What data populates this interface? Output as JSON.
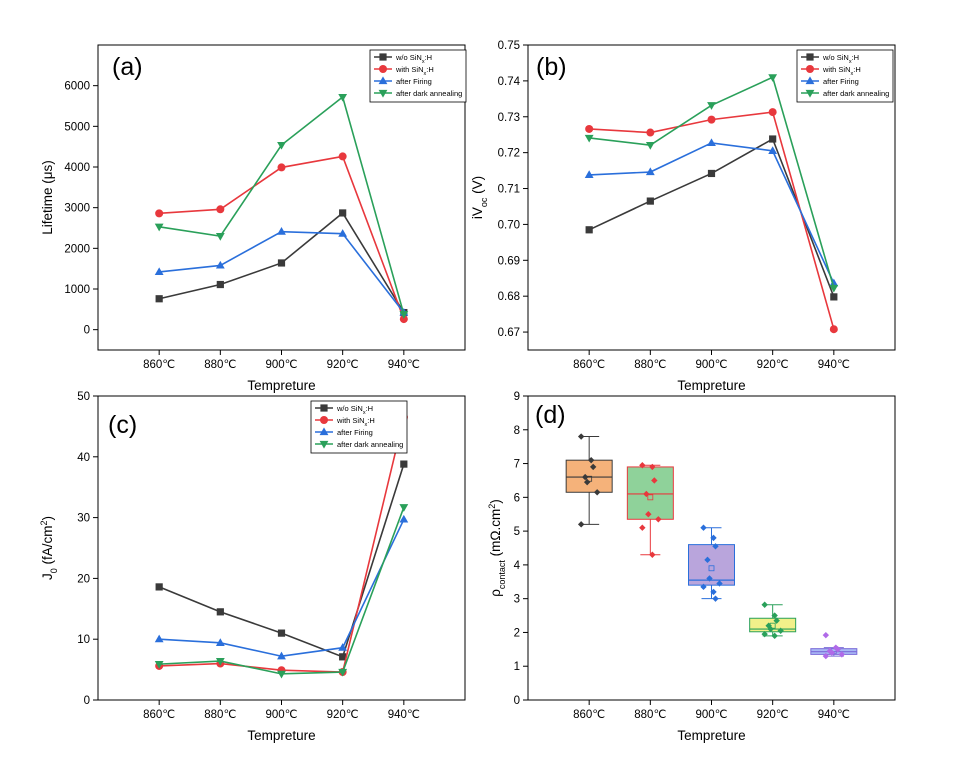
{
  "chart_data": [
    {
      "id": "a",
      "type": "line",
      "panel_label": "(a)",
      "categories": [
        "860℃",
        "880℃",
        "900℃",
        "920℃",
        "940℃"
      ],
      "xlabel": "Tempreture",
      "ylabel": "Lifetime (μs)",
      "ylim": [
        -500,
        7000
      ],
      "yticks": [
        0,
        1000,
        2000,
        3000,
        4000,
        5000,
        6000
      ],
      "ytick_labels": [
        "0",
        "1000",
        "2000",
        "3000",
        "4000",
        "5000",
        "6000"
      ],
      "legend_position": "top-right",
      "series": [
        {
          "name": "w/o SiNx:H",
          "label_main": "w/o SiN",
          "label_sub": "x",
          "label_tail": ":H",
          "color": "#3a3a3a",
          "marker": "square",
          "values": [
            760,
            1110,
            1640,
            2870,
            420
          ]
        },
        {
          "name": "with SiNx:H",
          "label_main": "with SiN",
          "label_sub": "x",
          "label_tail": ":H",
          "color": "#e8383d",
          "marker": "circle",
          "values": [
            2860,
            2960,
            3990,
            4260,
            260
          ]
        },
        {
          "name": "after Firing",
          "label_main": "after Firing",
          "label_sub": "",
          "label_tail": "",
          "color": "#2a6fdb",
          "marker": "triangle-up",
          "values": [
            1420,
            1580,
            2410,
            2360,
            420
          ]
        },
        {
          "name": "after dark annealing",
          "label_main": "after dark annealing",
          "label_sub": "",
          "label_tail": "",
          "color": "#2aa05a",
          "marker": "triangle-down",
          "values": [
            2530,
            2300,
            4540,
            5720,
            380
          ]
        }
      ]
    },
    {
      "id": "b",
      "type": "line",
      "panel_label": "(b)",
      "categories": [
        "860℃",
        "880℃",
        "900℃",
        "920℃",
        "940℃"
      ],
      "xlabel": "Tempreture",
      "ylabel_main": "iV",
      "ylabel_sub": "oc",
      "ylabel_tail": " (V)",
      "ylim": [
        0.665,
        0.75
      ],
      "yticks": [
        0.67,
        0.68,
        0.69,
        0.7,
        0.71,
        0.72,
        0.73,
        0.74,
        0.75
      ],
      "ytick_labels": [
        "0.67",
        "0.68",
        "0.69",
        "0.70",
        "0.71",
        "0.72",
        "0.73",
        "0.74",
        "0.75"
      ],
      "legend_position": "top-right",
      "series": [
        {
          "name": "w/o SiNx:H",
          "label_main": "w/o SiN",
          "label_sub": "x",
          "label_tail": ":H",
          "color": "#3a3a3a",
          "marker": "square",
          "values": [
            0.6985,
            0.7065,
            0.7142,
            0.7238,
            0.6798
          ]
        },
        {
          "name": "with SiNx:H",
          "label_main": "with SiN",
          "label_sub": "x",
          "label_tail": ":H",
          "color": "#e8383d",
          "marker": "circle",
          "values": [
            0.7266,
            0.7256,
            0.7292,
            0.7313,
            0.6708
          ]
        },
        {
          "name": "after Firing",
          "label_main": "after Firing",
          "label_sub": "",
          "label_tail": "",
          "color": "#2a6fdb",
          "marker": "triangle-up",
          "values": [
            0.7138,
            0.7146,
            0.7227,
            0.7205,
            0.6836
          ]
        },
        {
          "name": "after dark annealing",
          "label_main": "after dark annealing",
          "label_sub": "",
          "label_tail": "",
          "color": "#2aa05a",
          "marker": "triangle-down",
          "values": [
            0.7241,
            0.7221,
            0.7332,
            0.741,
            0.6823
          ]
        }
      ]
    },
    {
      "id": "c",
      "type": "line",
      "panel_label": "(c)",
      "categories": [
        "860℃",
        "880℃",
        "900℃",
        "920℃",
        "940℃"
      ],
      "xlabel": "Tempreture",
      "ylabel_main": "J",
      "ylabel_sub": "0",
      "ylabel_mid": " (fA/cm",
      "ylabel_sup": "2",
      "ylabel_tail": ")",
      "ylim": [
        0,
        50
      ],
      "yticks": [
        0,
        10,
        20,
        30,
        40,
        50
      ],
      "ytick_labels": [
        "0",
        "10",
        "20",
        "30",
        "40",
        "50"
      ],
      "legend_position": "top-right",
      "series": [
        {
          "name": "w/o SiNx:H",
          "label_main": "w/o SiN",
          "label_sub": "x",
          "label_tail": ":H",
          "color": "#3a3a3a",
          "marker": "square",
          "values": [
            18.6,
            14.5,
            11.0,
            7.1,
            38.8
          ]
        },
        {
          "name": "with SiNx:H",
          "label_main": "with SiN",
          "label_sub": "x",
          "label_tail": ":H",
          "color": "#e8383d",
          "marker": "circle",
          "values": [
            5.6,
            6.0,
            4.9,
            4.6,
            46.5
          ]
        },
        {
          "name": "after Firing",
          "label_main": "after Firing",
          "label_sub": "",
          "label_tail": "",
          "color": "#2a6fdb",
          "marker": "triangle-up",
          "values": [
            10.0,
            9.4,
            7.2,
            8.6,
            29.7
          ]
        },
        {
          "name": "after dark annealing",
          "label_main": "after dark annealing",
          "label_sub": "",
          "label_tail": "",
          "color": "#2aa05a",
          "marker": "triangle-down",
          "values": [
            5.9,
            6.4,
            4.3,
            4.6,
            31.7
          ]
        }
      ]
    },
    {
      "id": "d",
      "type": "box",
      "panel_label": "(d)",
      "categories": [
        "860℃",
        "880℃",
        "900℃",
        "920℃",
        "940℃"
      ],
      "xlabel": "Tempreture",
      "ylabel_main": "ρ",
      "ylabel_sub": "contact",
      "ylabel_mid": " (mΩ.cm",
      "ylabel_sup": "2",
      "ylabel_tail": ")",
      "ylim": [
        0,
        9
      ],
      "yticks": [
        0,
        1,
        2,
        3,
        4,
        5,
        6,
        7,
        8,
        9
      ],
      "ytick_labels": [
        "0",
        "1",
        "2",
        "3",
        "4",
        "5",
        "6",
        "7",
        "8",
        "9"
      ],
      "boxes": [
        {
          "category": "860℃",
          "q1": 6.15,
          "median": 6.6,
          "q3": 7.1,
          "whisker_low": 5.2,
          "whisker_high": 7.8,
          "mean": 6.55,
          "fill": "#f5b27a",
          "stroke": "#3a3a3a",
          "point_color": "#3a3a3a",
          "points": [
            7.8,
            7.1,
            6.9,
            6.6,
            6.45,
            6.15,
            5.2
          ]
        },
        {
          "category": "880℃",
          "q1": 5.35,
          "median": 6.1,
          "q3": 6.9,
          "whisker_low": 4.3,
          "whisker_high": 6.95,
          "mean": 6.0,
          "fill": "#8fd29a",
          "stroke": "#e8383d",
          "point_color": "#e8383d",
          "points": [
            6.95,
            6.9,
            6.5,
            6.1,
            5.5,
            5.35,
            5.1,
            4.3
          ]
        },
        {
          "category": "900℃",
          "q1": 3.4,
          "median": 3.55,
          "q3": 4.6,
          "whisker_low": 3.0,
          "whisker_high": 5.1,
          "mean": 3.9,
          "fill": "#b9a5dc",
          "stroke": "#2a6fdb",
          "point_color": "#2a6fdb",
          "points": [
            5.1,
            4.8,
            4.55,
            4.15,
            3.6,
            3.45,
            3.35,
            3.2,
            3.0
          ]
        },
        {
          "category": "920℃",
          "q1": 2.02,
          "median": 2.1,
          "q3": 2.42,
          "whisker_low": 1.9,
          "whisker_high": 2.82,
          "mean": 2.2,
          "fill": "#f2f08a",
          "stroke": "#2aa05a",
          "point_color": "#2aa05a",
          "points": [
            2.82,
            2.5,
            2.35,
            2.2,
            2.1,
            2.05,
            1.95,
            1.9
          ]
        },
        {
          "category": "940℃",
          "q1": 1.35,
          "median": 1.43,
          "q3": 1.52,
          "whisker_low": 1.3,
          "whisker_high": 1.55,
          "mean": 1.45,
          "fill": "#a9b9f5",
          "stroke": "#7a6bd8",
          "point_color": "#b06ae8",
          "points": [
            1.92,
            1.55,
            1.5,
            1.45,
            1.4,
            1.35,
            1.3
          ]
        }
      ]
    }
  ]
}
